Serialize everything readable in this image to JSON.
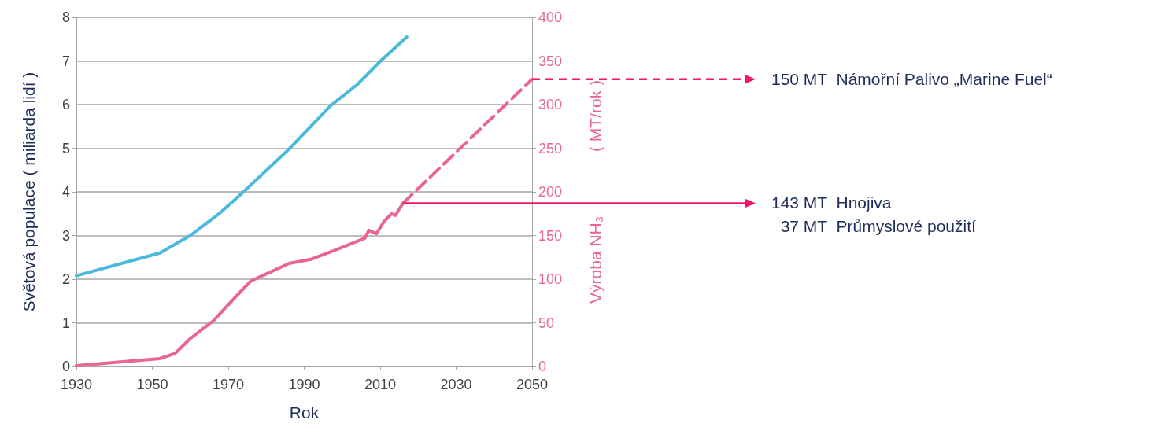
{
  "chart_data": {
    "type": "line",
    "xlabel": "Rok",
    "ylabel": "Světová populace ( miliarda lidí )",
    "y2label": "Výroba NH₃              ( MT/rok )",
    "xlim": [
      1930,
      2050
    ],
    "xticks": [
      1930,
      1950,
      1970,
      1990,
      2010,
      2030,
      2050
    ],
    "ylim": [
      0,
      8
    ],
    "yticks": [
      0,
      1,
      2,
      3,
      4,
      5,
      6,
      7,
      8
    ],
    "y2lim": [
      0,
      400
    ],
    "y2ticks": [
      0,
      50,
      100,
      150,
      200,
      250,
      300,
      350,
      400
    ],
    "grid": "y",
    "marker": "none",
    "series": [
      {
        "color": "#4bb8dc",
        "line_style": "solid",
        "x": [
          1930,
          1952,
          1960,
          1968,
          1974,
          1986,
          1997,
          2004,
          2010,
          2017
        ],
        "values": [
          2.08,
          2.6,
          3.0,
          3.53,
          4.0,
          4.98,
          5.98,
          6.46,
          6.99,
          7.55
        ]
      },
      {
        "color": "#e8668f",
        "axis": "y2",
        "line_style": "solid",
        "x": [
          1930,
          1952,
          1956,
          1960,
          1966,
          1972,
          1976,
          1980,
          1986,
          1992,
          1998,
          2006,
          2007,
          2009,
          2011,
          2013,
          2014,
          2016
        ],
        "values": [
          1,
          9,
          15,
          32,
          52,
          80,
          98,
          106,
          118,
          123,
          133,
          147,
          156,
          152,
          166,
          175,
          173,
          187
        ]
      },
      {
        "color": "#e8668f",
        "axis": "y2",
        "line_style": "dashed",
        "x": [
          2016,
          2050
        ],
        "values": [
          187,
          329
        ]
      }
    ],
    "annotations": [
      "150 MT  Námořní Palivo „Marine Fuel“",
      "143 MT  Hnojiva\n  37 MT  Průmyslové použití"
    ]
  }
}
